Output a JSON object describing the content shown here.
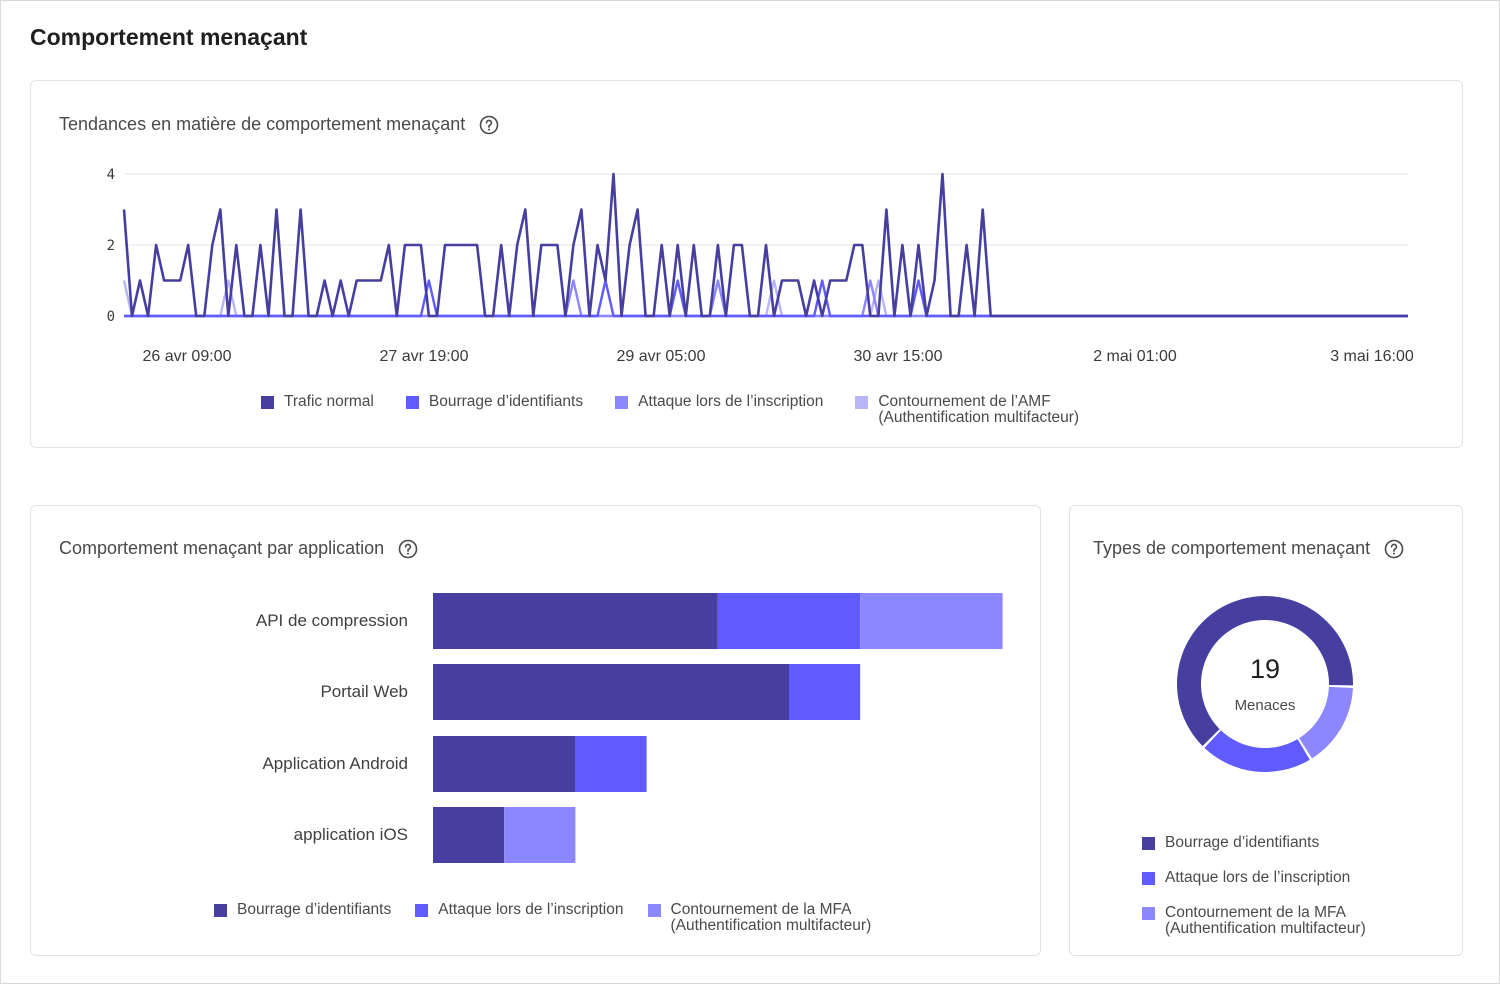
{
  "page": {
    "title": "Comportement menaçant"
  },
  "colors": {
    "normal": "#463fa0",
    "credential": "#5f5bff",
    "signup": "#8c87ff",
    "mfa": "#b8b5f7",
    "grid": "#e6e6e6",
    "border": "#e2e2e2"
  },
  "icons": {
    "help": "help-circle-icon"
  },
  "trend_card": {
    "title": "Tendances en matière de comportement menaçant",
    "legend": [
      "Trafic normal",
      "Bourrage d’identifiants",
      "Attaque lors de l’inscription",
      "Contournement de l’AMF\n(Authentification multifacteur)"
    ]
  },
  "app_card": {
    "title": "Comportement menaçant par application",
    "legend": [
      "Bourrage d’identifiants",
      "Attaque lors de l’inscription",
      "Contournement de la MFA\n(Authentification multifacteur)"
    ]
  },
  "types_card": {
    "title": "Types de comportement menaçant",
    "center_value": "19",
    "center_label": "Menaces",
    "legend": [
      "Bourrage d’identifiants",
      "Attaque lors de l’inscription",
      "Contournement de la MFA\n(Authentification multifacteur)"
    ]
  },
  "chart_data": [
    {
      "type": "line",
      "title": "Tendances en matière de comportement menaçant",
      "x_ticks": [
        "26 avr 09:00",
        "27 avr 19:00",
        "29 avr 05:00",
        "30 avr 15:00",
        "2 mai 01:00",
        "3 mai 16:00"
      ],
      "y_ticks": [
        0,
        2,
        4
      ],
      "ylim": [
        0,
        4
      ],
      "grid": true,
      "legend_position": "bottom",
      "series": [
        {
          "name": "Trafic normal",
          "values": [
            3,
            0,
            1,
            0,
            2,
            1,
            1,
            1,
            2,
            0,
            0,
            2,
            3,
            0,
            2,
            0,
            0,
            2,
            0,
            3,
            0,
            0,
            3,
            0,
            0,
            1,
            0,
            1,
            0,
            1,
            1,
            1,
            1,
            2,
            0,
            2,
            2,
            2,
            0,
            0,
            2,
            2,
            2,
            2,
            2,
            0,
            0,
            2,
            0,
            2,
            3,
            0,
            2,
            2,
            2,
            0,
            2,
            3,
            0,
            2,
            1,
            4,
            0,
            2,
            3,
            0,
            0,
            2,
            0,
            2,
            0,
            2,
            0,
            0,
            2,
            0,
            2,
            2,
            0,
            0,
            2,
            0,
            1,
            1,
            1,
            0,
            1,
            0,
            1,
            1,
            1,
            2,
            2,
            0,
            0,
            3,
            0,
            2,
            0,
            2,
            0,
            1,
            4,
            0,
            0,
            2,
            0,
            3,
            0,
            0,
            0,
            0,
            0,
            0,
            0,
            0,
            0,
            0,
            0,
            0,
            0,
            0,
            0,
            0,
            0,
            0,
            0,
            0,
            0,
            0,
            0,
            0,
            0,
            0,
            0,
            0,
            0,
            0,
            0,
            0,
            0,
            0,
            0,
            0,
            0,
            0,
            0,
            0,
            0,
            0,
            0,
            0,
            0,
            0,
            0,
            0,
            0,
            0,
            0,
            0,
            0
          ]
        },
        {
          "name": "Bourrage d’identifiants",
          "values": [
            0,
            0,
            0,
            0,
            0,
            0,
            0,
            0,
            0,
            0,
            0,
            0,
            0,
            0,
            0,
            0,
            0,
            0,
            0,
            0,
            0,
            0,
            0,
            0,
            0,
            0,
            0,
            0,
            0,
            0,
            0,
            0,
            0,
            0,
            0,
            0,
            0,
            0,
            1,
            0,
            0,
            0,
            0,
            0,
            0,
            0,
            0,
            0,
            0,
            0,
            0,
            0,
            0,
            0,
            0,
            0,
            0,
            0,
            0,
            0,
            1,
            0,
            0,
            0,
            0,
            0,
            0,
            0,
            0,
            1,
            0,
            0,
            0,
            0,
            0,
            0,
            0,
            0,
            0,
            0,
            0,
            0,
            0,
            0,
            0,
            0,
            0,
            1,
            0,
            0,
            0,
            0,
            0,
            0,
            0,
            0,
            0,
            0,
            0,
            1,
            0,
            0,
            0,
            0,
            0,
            0,
            0,
            0,
            0,
            0,
            0,
            0,
            0,
            0,
            0,
            0,
            0,
            0,
            0,
            0,
            0,
            0,
            0,
            0,
            0,
            0,
            0,
            0,
            0,
            0,
            0,
            0,
            0,
            0,
            0,
            0,
            0,
            0,
            0,
            0,
            0,
            0,
            0,
            0,
            0,
            0,
            0,
            0,
            0,
            0,
            0,
            0,
            0,
            0,
            0,
            0,
            0,
            0,
            0,
            0,
            0
          ]
        },
        {
          "name": "Attaque lors de l’inscription",
          "values": [
            0,
            0,
            0,
            0,
            0,
            0,
            0,
            0,
            0,
            0,
            0,
            0,
            0,
            0,
            0,
            0,
            0,
            0,
            0,
            0,
            0,
            0,
            0,
            0,
            0,
            0,
            0,
            0,
            0,
            0,
            0,
            0,
            0,
            0,
            0,
            0,
            0,
            0,
            0,
            0,
            0,
            0,
            0,
            0,
            0,
            0,
            0,
            0,
            0,
            0,
            0,
            0,
            0,
            0,
            0,
            0,
            1,
            0,
            0,
            0,
            0,
            0,
            0,
            0,
            0,
            0,
            0,
            0,
            0,
            0,
            0,
            0,
            0,
            0,
            1,
            0,
            0,
            0,
            0,
            0,
            0,
            0,
            0,
            0,
            0,
            0,
            0,
            0,
            0,
            0,
            0,
            0,
            0,
            1,
            0,
            0,
            0,
            0,
            0,
            0,
            0,
            0,
            0,
            0,
            0,
            0,
            0,
            0,
            0,
            0,
            0,
            0,
            0,
            0,
            0,
            0,
            0,
            0,
            0,
            0,
            0,
            0,
            0,
            0,
            0,
            0,
            0,
            0,
            0,
            0,
            0,
            0,
            0,
            0,
            0,
            0,
            0,
            0,
            0,
            0,
            0,
            0,
            0,
            0,
            0,
            0,
            0,
            0,
            0,
            0,
            0,
            0,
            0,
            0,
            0,
            0,
            0,
            0,
            0,
            0,
            0
          ]
        },
        {
          "name": "Contournement de l’AMF (Authentification multifacteur)",
          "values": [
            1,
            0,
            0,
            0,
            0,
            0,
            0,
            0,
            0,
            0,
            0,
            0,
            0,
            1,
            0,
            0,
            0,
            0,
            0,
            0,
            0,
            0,
            0,
            0,
            0,
            0,
            0,
            0,
            0,
            0,
            0,
            0,
            0,
            0,
            0,
            0,
            0,
            0,
            0,
            0,
            0,
            0,
            0,
            0,
            0,
            0,
            0,
            0,
            0,
            0,
            0,
            0,
            0,
            0,
            0,
            0,
            0,
            0,
            0,
            0,
            0,
            0,
            0,
            0,
            0,
            0,
            0,
            0,
            0,
            0,
            0,
            0,
            0,
            0,
            0,
            0,
            0,
            0,
            0,
            0,
            0,
            1,
            0,
            0,
            0,
            0,
            0,
            0,
            0,
            0,
            0,
            0,
            0,
            0,
            1,
            0,
            0,
            0,
            0,
            0,
            0,
            0,
            0,
            0,
            0,
            0,
            0,
            0,
            0,
            0,
            0,
            0,
            0,
            0,
            0,
            0,
            0,
            0,
            0,
            0,
            0,
            0,
            0,
            0,
            0,
            0,
            0,
            0,
            0,
            0,
            0,
            0,
            0,
            0,
            0,
            0,
            0,
            0,
            0,
            0,
            0,
            0,
            0,
            0,
            0,
            0,
            0,
            0,
            0,
            0,
            0,
            0,
            0,
            0,
            0,
            0,
            0,
            0,
            0,
            0,
            0
          ]
        }
      ]
    },
    {
      "type": "bar",
      "orientation": "horizontal",
      "stacked": true,
      "title": "Comportement menaçant par application",
      "categories": [
        "API de compression",
        "Portail Web",
        "Application Android",
        "application iOS"
      ],
      "legend_position": "bottom",
      "series": [
        {
          "name": "Bourrage d’identifiants",
          "values": [
            4,
            5,
            2,
            1
          ]
        },
        {
          "name": "Attaque lors de l’inscription",
          "values": [
            2,
            1,
            1,
            0
          ]
        },
        {
          "name": "Contournement de la MFA (Authentification multifacteur)",
          "values": [
            2,
            0,
            0,
            1
          ]
        }
      ]
    },
    {
      "type": "pie",
      "donut": true,
      "title": "Types de comportement menaçant",
      "total": 19,
      "legend_position": "bottom",
      "categories": [
        "Bourrage d’identifiants",
        "Attaque lors de l’inscription",
        "Contournement de la MFA (Authentification multifacteur)"
      ],
      "values": [
        12,
        4,
        3
      ]
    }
  ]
}
